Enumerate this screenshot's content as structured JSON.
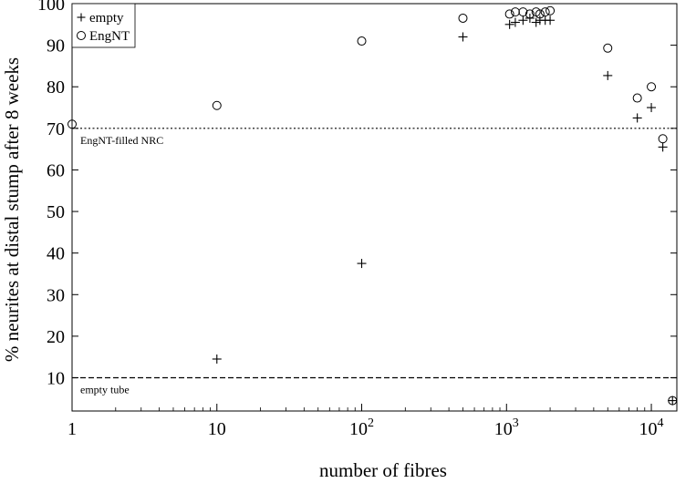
{
  "chart_data": {
    "type": "scatter",
    "title": "",
    "xlabel": "number of fibres",
    "ylabel": "% neurites at distal stump after 8 weeks",
    "xscale": "log",
    "xlim": [
      1,
      15000
    ],
    "ylim": [
      2,
      100
    ],
    "x_ticks": [
      {
        "value": 1,
        "base": "1",
        "exp": ""
      },
      {
        "value": 10,
        "base": "10",
        "exp": ""
      },
      {
        "value": 100,
        "base": "10",
        "exp": "2"
      },
      {
        "value": 1000,
        "base": "10",
        "exp": "3"
      },
      {
        "value": 10000,
        "base": "10",
        "exp": "4"
      }
    ],
    "y_ticks": [
      10,
      20,
      30,
      40,
      50,
      60,
      70,
      80,
      90,
      100
    ],
    "grid": false,
    "legend_position": "top-left",
    "series": [
      {
        "name": "empty",
        "marker": "plus",
        "points": [
          {
            "x": 10,
            "y": 14.5
          },
          {
            "x": 100,
            "y": 37.5
          },
          {
            "x": 500,
            "y": 92
          },
          {
            "x": 1050,
            "y": 95
          },
          {
            "x": 1150,
            "y": 95.5
          },
          {
            "x": 1300,
            "y": 96
          },
          {
            "x": 1450,
            "y": 96.5
          },
          {
            "x": 1600,
            "y": 95.5
          },
          {
            "x": 1700,
            "y": 96
          },
          {
            "x": 1850,
            "y": 96
          },
          {
            "x": 2000,
            "y": 96
          },
          {
            "x": 5000,
            "y": 82.7
          },
          {
            "x": 8000,
            "y": 72.5
          },
          {
            "x": 10000,
            "y": 75
          },
          {
            "x": 12000,
            "y": 65.5
          },
          {
            "x": 14000,
            "y": 4.5
          }
        ]
      },
      {
        "name": "EngNT",
        "marker": "circle",
        "points": [
          {
            "x": 1,
            "y": 71
          },
          {
            "x": 10,
            "y": 75.5
          },
          {
            "x": 100,
            "y": 91
          },
          {
            "x": 500,
            "y": 96.5
          },
          {
            "x": 1050,
            "y": 97.5
          },
          {
            "x": 1150,
            "y": 98
          },
          {
            "x": 1300,
            "y": 98
          },
          {
            "x": 1450,
            "y": 97.5
          },
          {
            "x": 1600,
            "y": 98
          },
          {
            "x": 1700,
            "y": 97.5
          },
          {
            "x": 1850,
            "y": 98
          },
          {
            "x": 2000,
            "y": 98.3
          },
          {
            "x": 5000,
            "y": 89.3
          },
          {
            "x": 8000,
            "y": 77.3
          },
          {
            "x": 10000,
            "y": 80
          },
          {
            "x": 12000,
            "y": 67.5
          },
          {
            "x": 14000,
            "y": 4.5
          }
        ]
      }
    ],
    "reference_lines": [
      {
        "y": 70,
        "label": "EngNT-filled NRC",
        "style": "dotted"
      },
      {
        "y": 10,
        "label": "empty tube",
        "style": "dashed"
      }
    ]
  }
}
